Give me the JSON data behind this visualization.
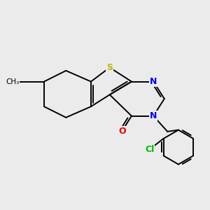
{
  "background_color": "#ebebeb",
  "atom_colors": {
    "S": "#b8b800",
    "N": "#0000ee",
    "O": "#ee0000",
    "Cl": "#00bb00",
    "C": "#000000"
  },
  "bond_color": "#000000",
  "bond_width": 1.4,
  "font_size_atoms": 9
}
